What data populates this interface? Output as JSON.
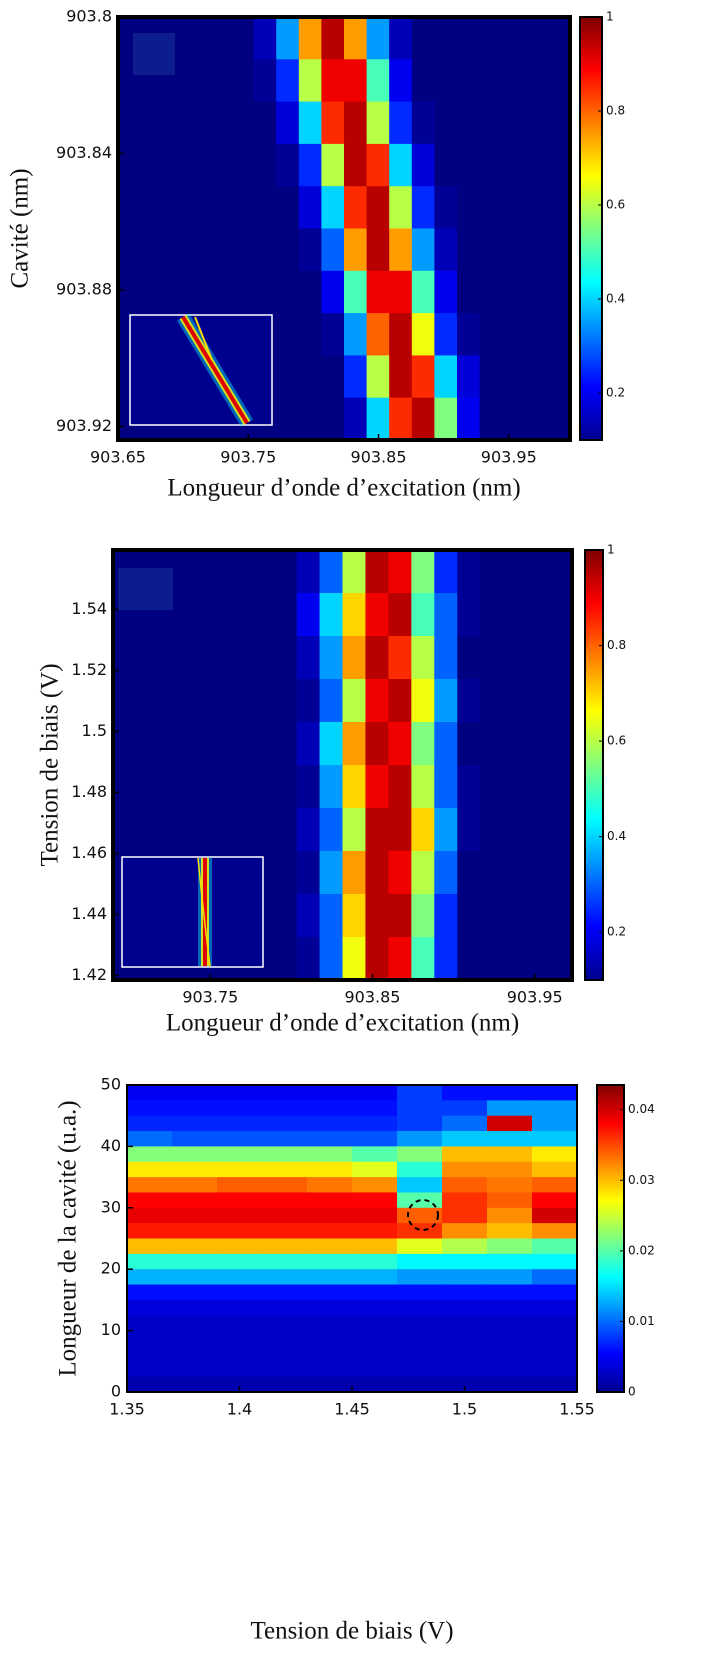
{
  "chart_data": [
    {
      "type": "heatmap",
      "colormap": "jet",
      "xlabel": "Longueur d’onde d’excitation (nm)",
      "ylabel": "Cavité (nm)",
      "xlim": [
        903.65,
        903.997
      ],
      "ylim": [
        903.924,
        903.8
      ],
      "xticks": [
        903.65,
        903.75,
        903.85,
        903.95
      ],
      "yticks": [
        903.8,
        903.84,
        903.88,
        903.92
      ],
      "clim": [
        0.1,
        1
      ],
      "cticks": [
        0.2,
        0.4,
        0.6,
        0.8,
        1
      ],
      "z": [
        [
          0.1,
          0.1,
          0.1,
          0.1,
          0.1,
          0.1,
          0.15,
          0.35,
          0.75,
          0.95,
          0.75,
          0.35,
          0.15,
          0.1,
          0.1,
          0.1,
          0.1,
          0.1,
          0.1,
          0.1
        ],
        [
          0.1,
          0.1,
          0.1,
          0.1,
          0.1,
          0.1,
          0.12,
          0.25,
          0.6,
          0.9,
          0.9,
          0.5,
          0.2,
          0.1,
          0.1,
          0.1,
          0.1,
          0.1,
          0.1,
          0.1
        ],
        [
          0.1,
          0.1,
          0.1,
          0.1,
          0.1,
          0.1,
          0.1,
          0.18,
          0.4,
          0.85,
          0.95,
          0.6,
          0.25,
          0.12,
          0.1,
          0.1,
          0.1,
          0.1,
          0.1,
          0.1
        ],
        [
          0.1,
          0.1,
          0.1,
          0.1,
          0.1,
          0.1,
          0.1,
          0.12,
          0.25,
          0.6,
          0.95,
          0.85,
          0.4,
          0.18,
          0.1,
          0.1,
          0.1,
          0.1,
          0.1,
          0.1
        ],
        [
          0.1,
          0.1,
          0.1,
          0.1,
          0.1,
          0.1,
          0.1,
          0.1,
          0.18,
          0.4,
          0.85,
          0.95,
          0.6,
          0.25,
          0.12,
          0.1,
          0.1,
          0.1,
          0.1,
          0.1
        ],
        [
          0.1,
          0.1,
          0.1,
          0.1,
          0.1,
          0.1,
          0.1,
          0.1,
          0.12,
          0.3,
          0.75,
          0.95,
          0.75,
          0.35,
          0.15,
          0.1,
          0.1,
          0.1,
          0.1,
          0.1
        ],
        [
          0.1,
          0.1,
          0.1,
          0.1,
          0.1,
          0.1,
          0.1,
          0.1,
          0.1,
          0.2,
          0.5,
          0.9,
          0.9,
          0.5,
          0.2,
          0.1,
          0.1,
          0.1,
          0.1,
          0.1
        ],
        [
          0.1,
          0.1,
          0.1,
          0.1,
          0.1,
          0.1,
          0.1,
          0.1,
          0.1,
          0.12,
          0.35,
          0.8,
          0.95,
          0.65,
          0.25,
          0.12,
          0.1,
          0.1,
          0.1,
          0.1
        ],
        [
          0.1,
          0.1,
          0.1,
          0.1,
          0.1,
          0.1,
          0.1,
          0.1,
          0.1,
          0.1,
          0.25,
          0.6,
          0.95,
          0.85,
          0.4,
          0.18,
          0.1,
          0.1,
          0.1,
          0.1
        ],
        [
          0.1,
          0.1,
          0.1,
          0.1,
          0.1,
          0.1,
          0.1,
          0.1,
          0.1,
          0.1,
          0.15,
          0.4,
          0.85,
          0.95,
          0.55,
          0.2,
          0.1,
          0.1,
          0.1,
          0.1
        ]
      ]
    },
    {
      "type": "heatmap",
      "colormap": "jet",
      "xlabel": "Longueur d’onde d’excitation (nm)",
      "ylabel": "Tension de biais (V)",
      "xlim": [
        903.69,
        903.973
      ],
      "ylim": [
        1.4185,
        1.5595
      ],
      "xticks": [
        903.75,
        903.85,
        903.95
      ],
      "yticks": [
        1.42,
        1.44,
        1.46,
        1.48,
        1.5,
        1.52,
        1.54
      ],
      "clim": [
        0.1,
        1
      ],
      "cticks": [
        0.2,
        0.4,
        0.6,
        0.8,
        1
      ],
      "z": [
        [
          0.1,
          0.1,
          0.1,
          0.1,
          0.1,
          0.1,
          0.1,
          0.1,
          0.15,
          0.3,
          0.6,
          0.95,
          0.9,
          0.55,
          0.25,
          0.12,
          0.1,
          0.1,
          0.1,
          0.1
        ],
        [
          0.1,
          0.1,
          0.1,
          0.1,
          0.1,
          0.1,
          0.1,
          0.1,
          0.2,
          0.4,
          0.7,
          0.9,
          0.95,
          0.5,
          0.3,
          0.12,
          0.1,
          0.1,
          0.1,
          0.1
        ],
        [
          0.1,
          0.1,
          0.1,
          0.1,
          0.1,
          0.1,
          0.1,
          0.1,
          0.15,
          0.35,
          0.75,
          0.95,
          0.85,
          0.6,
          0.3,
          0.1,
          0.1,
          0.1,
          0.1,
          0.1
        ],
        [
          0.1,
          0.1,
          0.1,
          0.1,
          0.1,
          0.1,
          0.1,
          0.1,
          0.12,
          0.3,
          0.6,
          0.9,
          0.95,
          0.65,
          0.35,
          0.12,
          0.1,
          0.1,
          0.1,
          0.1
        ],
        [
          0.1,
          0.1,
          0.1,
          0.1,
          0.1,
          0.1,
          0.1,
          0.1,
          0.15,
          0.4,
          0.75,
          0.95,
          0.9,
          0.55,
          0.3,
          0.1,
          0.1,
          0.1,
          0.1,
          0.1
        ],
        [
          0.1,
          0.1,
          0.1,
          0.1,
          0.1,
          0.1,
          0.1,
          0.1,
          0.12,
          0.35,
          0.7,
          0.9,
          0.95,
          0.6,
          0.3,
          0.12,
          0.1,
          0.1,
          0.1,
          0.1
        ],
        [
          0.1,
          0.1,
          0.1,
          0.1,
          0.1,
          0.1,
          0.1,
          0.1,
          0.15,
          0.3,
          0.6,
          0.95,
          0.95,
          0.7,
          0.35,
          0.12,
          0.1,
          0.1,
          0.1,
          0.1
        ],
        [
          0.1,
          0.1,
          0.1,
          0.1,
          0.1,
          0.1,
          0.1,
          0.1,
          0.12,
          0.35,
          0.75,
          0.95,
          0.9,
          0.6,
          0.3,
          0.1,
          0.1,
          0.1,
          0.1,
          0.1
        ],
        [
          0.1,
          0.1,
          0.1,
          0.1,
          0.1,
          0.1,
          0.1,
          0.1,
          0.15,
          0.3,
          0.7,
          0.95,
          0.95,
          0.55,
          0.25,
          0.1,
          0.1,
          0.1,
          0.1,
          0.1
        ],
        [
          0.1,
          0.1,
          0.1,
          0.1,
          0.1,
          0.1,
          0.1,
          0.1,
          0.12,
          0.3,
          0.65,
          0.95,
          0.9,
          0.5,
          0.25,
          0.1,
          0.1,
          0.1,
          0.1,
          0.1
        ]
      ]
    },
    {
      "type": "heatmap",
      "colormap": "jet",
      "xlabel": "Tension de biais (V)",
      "ylabel": "Longueur de la cavité (u.a.)",
      "xlim": [
        1.35,
        1.55
      ],
      "ylim": [
        0,
        50
      ],
      "xticks": [
        1.35,
        1.4,
        1.45,
        1.5,
        1.55
      ],
      "yticks": [
        0,
        10,
        20,
        30,
        40,
        50
      ],
      "clim": [
        0,
        0.0435
      ],
      "cticks": [
        0,
        0.01,
        0.02,
        0.03,
        0.04
      ],
      "z": [
        [
          0.005,
          0.005,
          0.005,
          0.005,
          0.005,
          0.005,
          0.008,
          0.006,
          0.006,
          0.006
        ],
        [
          0.006,
          0.006,
          0.006,
          0.006,
          0.006,
          0.006,
          0.008,
          0.008,
          0.012,
          0.012
        ],
        [
          0.007,
          0.007,
          0.007,
          0.007,
          0.007,
          0.007,
          0.008,
          0.01,
          0.04,
          0.012
        ],
        [
          0.01,
          0.009,
          0.009,
          0.009,
          0.009,
          0.009,
          0.012,
          0.014,
          0.014,
          0.014
        ],
        [
          0.022,
          0.022,
          0.022,
          0.022,
          0.022,
          0.02,
          0.022,
          0.03,
          0.03,
          0.028
        ],
        [
          0.028,
          0.028,
          0.028,
          0.028,
          0.028,
          0.026,
          0.018,
          0.032,
          0.032,
          0.03
        ],
        [
          0.033,
          0.033,
          0.034,
          0.034,
          0.033,
          0.032,
          0.014,
          0.034,
          0.033,
          0.034
        ],
        [
          0.038,
          0.038,
          0.038,
          0.038,
          0.038,
          0.038,
          0.02,
          0.036,
          0.034,
          0.038
        ],
        [
          0.039,
          0.039,
          0.039,
          0.039,
          0.039,
          0.039,
          0.034,
          0.036,
          0.032,
          0.04
        ],
        [
          0.037,
          0.037,
          0.037,
          0.037,
          0.037,
          0.037,
          0.036,
          0.032,
          0.03,
          0.032
        ],
        [
          0.03,
          0.03,
          0.03,
          0.03,
          0.03,
          0.03,
          0.026,
          0.024,
          0.022,
          0.02
        ],
        [
          0.018,
          0.018,
          0.018,
          0.018,
          0.018,
          0.018,
          0.016,
          0.016,
          0.016,
          0.016
        ],
        [
          0.013,
          0.013,
          0.013,
          0.013,
          0.013,
          0.013,
          0.012,
          0.012,
          0.012,
          0.01
        ],
        [
          0.006,
          0.006,
          0.006,
          0.006,
          0.006,
          0.006,
          0.006,
          0.006,
          0.006,
          0.006
        ],
        [
          0.004,
          0.004,
          0.004,
          0.004,
          0.004,
          0.004,
          0.004,
          0.004,
          0.004,
          0.004
        ],
        [
          0.003,
          0.003,
          0.003,
          0.003,
          0.003,
          0.003,
          0.003,
          0.003,
          0.003,
          0.003
        ],
        [
          0.003,
          0.003,
          0.003,
          0.003,
          0.003,
          0.003,
          0.003,
          0.003,
          0.003,
          0.003
        ],
        [
          0.003,
          0.003,
          0.003,
          0.003,
          0.003,
          0.003,
          0.003,
          0.003,
          0.003,
          0.003
        ],
        [
          0.003,
          0.003,
          0.003,
          0.003,
          0.003,
          0.003,
          0.003,
          0.003,
          0.003,
          0.003
        ],
        [
          0.002,
          0.002,
          0.002,
          0.002,
          0.002,
          0.002,
          0.002,
          0.002,
          0.002,
          0.002
        ]
      ]
    }
  ]
}
